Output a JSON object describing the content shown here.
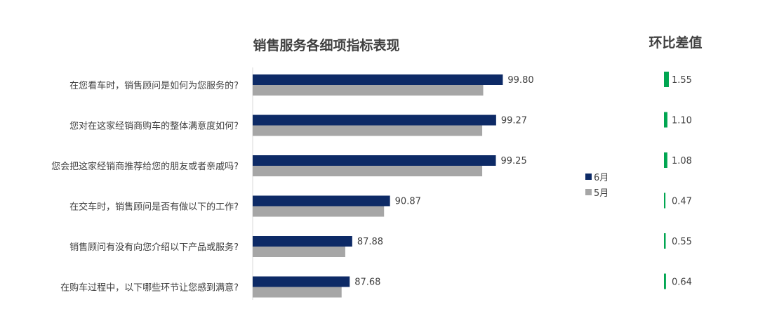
{
  "chart_data": {
    "type": "bar",
    "orientation": "horizontal",
    "title": "销售服务各细项指标表现",
    "categories": [
      "在您看车时，销售顾问是如何为您服务的?",
      "您对在这家经销商购车的整体满意度如何?",
      "您会把这家经销商推荐给您的朋友或者亲戚吗?",
      "在交车时，销售顾问是否有做以下的工作?",
      "销售顾问有没有向您介绍以下产品或服务?",
      "在购车过程中，以下哪些环节让您感到满意?"
    ],
    "series": [
      {
        "name": "6月",
        "color": "#0d2a66",
        "values": [
          99.8,
          99.27,
          99.25,
          90.87,
          87.88,
          87.68
        ],
        "labels": [
          "99.80",
          "99.27",
          "99.25",
          "90.87",
          "87.88",
          "87.68"
        ]
      },
      {
        "name": "5月",
        "color": "#a6a6a6",
        "values": [
          98.25,
          98.17,
          98.17,
          90.4,
          87.33,
          87.04
        ]
      }
    ],
    "xlim": [
      80,
      100
    ],
    "legend_position": "right",
    "grid": false,
    "diff": {
      "title": "环比差值",
      "color": "#00a651",
      "values": [
        1.55,
        1.1,
        1.08,
        0.47,
        0.55,
        0.64
      ],
      "labels": [
        "1.55",
        "1.10",
        "1.08",
        "0.47",
        "0.55",
        "0.64"
      ]
    }
  }
}
